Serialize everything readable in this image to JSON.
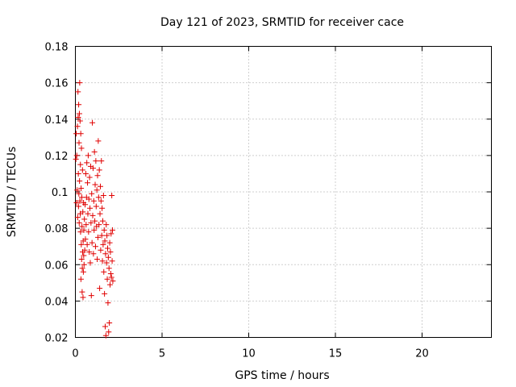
{
  "chart_data": {
    "type": "scatter",
    "title": "Day 121 of 2023, SRMTID for receiver cace",
    "xlabel": "GPS time / hours",
    "ylabel": "SRMTID / TECUs",
    "xlim": [
      0,
      24
    ],
    "ylim": [
      0.02,
      0.18
    ],
    "x_ticks": [
      0,
      5,
      10,
      15,
      20
    ],
    "x_tick_labels": [
      "0",
      "5",
      "10",
      "15",
      "20"
    ],
    "y_ticks": [
      0.02,
      0.04,
      0.06,
      0.08,
      0.1,
      0.12,
      0.14,
      0.16,
      0.18
    ],
    "y_tick_labels": [
      "0.02",
      "0.04",
      "0.06",
      "0.08",
      "0.1",
      "0.12",
      "0.14",
      "0.16",
      "0.18"
    ],
    "grid": true,
    "legend": "none",
    "marker": "plus",
    "series": [
      {
        "color": "#e00000",
        "points": [
          [
            0.03,
            0.118
          ],
          [
            0.05,
            0.132
          ],
          [
            0.07,
            0.094
          ],
          [
            0.08,
            0.12
          ],
          [
            0.1,
            0.101
          ],
          [
            0.12,
            0.136
          ],
          [
            0.13,
            0.086
          ],
          [
            0.15,
            0.155
          ],
          [
            0.16,
            0.141
          ],
          [
            0.17,
            0.11
          ],
          [
            0.18,
            0.092
          ],
          [
            0.19,
            0.148
          ],
          [
            0.2,
            0.099
          ],
          [
            0.21,
            0.127
          ],
          [
            0.22,
            0.083
          ],
          [
            0.23,
            0.143
          ],
          [
            0.24,
            0.106
          ],
          [
            0.25,
            0.16
          ],
          [
            0.26,
            0.095
          ],
          [
            0.27,
            0.139
          ],
          [
            0.28,
            0.088
          ],
          [
            0.29,
            0.115
          ],
          [
            0.3,
            0.078
          ],
          [
            0.31,
            0.132
          ],
          [
            0.32,
            0.052
          ],
          [
            0.33,
            0.102
          ],
          [
            0.34,
            0.071
          ],
          [
            0.35,
            0.124
          ],
          [
            0.36,
            0.063
          ],
          [
            0.37,
            0.097
          ],
          [
            0.38,
            0.081
          ],
          [
            0.39,
            0.045
          ],
          [
            0.4,
            0.058
          ],
          [
            0.41,
            0.112
          ],
          [
            0.42,
            0.067
          ],
          [
            0.43,
            0.089
          ],
          [
            0.44,
            0.042
          ],
          [
            0.45,
            0.073
          ],
          [
            0.46,
            0.056
          ],
          [
            0.47,
            0.094
          ],
          [
            0.48,
            0.065
          ],
          [
            0.49,
            0.079
          ],
          [
            0.5,
            0.06
          ],
          [
            0.52,
            0.085
          ],
          [
            0.54,
            0.068
          ],
          [
            0.56,
            0.093
          ],
          [
            0.58,
            0.074
          ],
          [
            0.6,
            0.11
          ],
          [
            0.62,
            0.082
          ],
          [
            0.64,
            0.097
          ],
          [
            0.66,
            0.116
          ],
          [
            0.68,
            0.071
          ],
          [
            0.7,
            0.105
          ],
          [
            0.72,
            0.088
          ],
          [
            0.74,
            0.12
          ],
          [
            0.76,
            0.078
          ],
          [
            0.78,
            0.096
          ],
          [
            0.8,
            0.067
          ],
          [
            0.82,
            0.108
          ],
          [
            0.84,
            0.091
          ],
          [
            0.86,
            0.061
          ],
          [
            0.88,
            0.114
          ],
          [
            0.9,
            0.083
          ],
          [
            0.92,
            0.043
          ],
          [
            0.94,
            0.099
          ],
          [
            0.96,
            0.072
          ],
          [
            0.98,
            0.138
          ],
          [
            1.0,
            0.087
          ],
          [
            1.02,
            0.113
          ],
          [
            1.04,
            0.066
          ],
          [
            1.06,
            0.095
          ],
          [
            1.08,
            0.079
          ],
          [
            1.1,
            0.122
          ],
          [
            1.12,
            0.084
          ],
          [
            1.14,
            0.104
          ],
          [
            1.16,
            0.07
          ],
          [
            1.18,
            0.117
          ],
          [
            1.2,
            0.092
          ],
          [
            1.22,
            0.081
          ],
          [
            1.24,
            0.101
          ],
          [
            1.26,
            0.063
          ],
          [
            1.28,
            0.109
          ],
          [
            1.3,
            0.075
          ],
          [
            1.32,
            0.128
          ],
          [
            1.34,
            0.097
          ],
          [
            1.36,
            0.082
          ],
          [
            1.38,
            0.112
          ],
          [
            1.4,
            0.047
          ],
          [
            1.42,
            0.088
          ],
          [
            1.44,
            0.103
          ],
          [
            1.46,
            0.068
          ],
          [
            1.48,
            0.095
          ],
          [
            1.5,
            0.117
          ],
          [
            1.52,
            0.076
          ],
          [
            1.54,
            0.091
          ],
          [
            1.56,
            0.062
          ],
          [
            1.58,
            0.084
          ],
          [
            1.6,
            0.071
          ],
          [
            1.62,
            0.098
          ],
          [
            1.64,
            0.056
          ],
          [
            1.66,
            0.079
          ],
          [
            1.68,
            0.044
          ],
          [
            1.7,
            0.073
          ],
          [
            1.72,
            0.026
          ],
          [
            1.74,
            0.066
          ],
          [
            1.76,
            0.021
          ],
          [
            1.78,
            0.082
          ],
          [
            1.8,
            0.061
          ],
          [
            1.82,
            0.076
          ],
          [
            1.84,
            0.052
          ],
          [
            1.86,
            0.069
          ],
          [
            1.88,
            0.039
          ],
          [
            1.9,
            0.064
          ],
          [
            1.92,
            0.023
          ],
          [
            1.94,
            0.058
          ],
          [
            1.96,
            0.028
          ],
          [
            1.98,
            0.072
          ],
          [
            2.0,
            0.049
          ],
          [
            2.02,
            0.067
          ],
          [
            2.04,
            0.055
          ],
          [
            2.06,
            0.077
          ],
          [
            2.08,
            0.053
          ],
          [
            2.1,
            0.098
          ],
          [
            2.12,
            0.062
          ],
          [
            2.14,
            0.079
          ],
          [
            2.16,
            0.051
          ]
        ]
      }
    ]
  }
}
